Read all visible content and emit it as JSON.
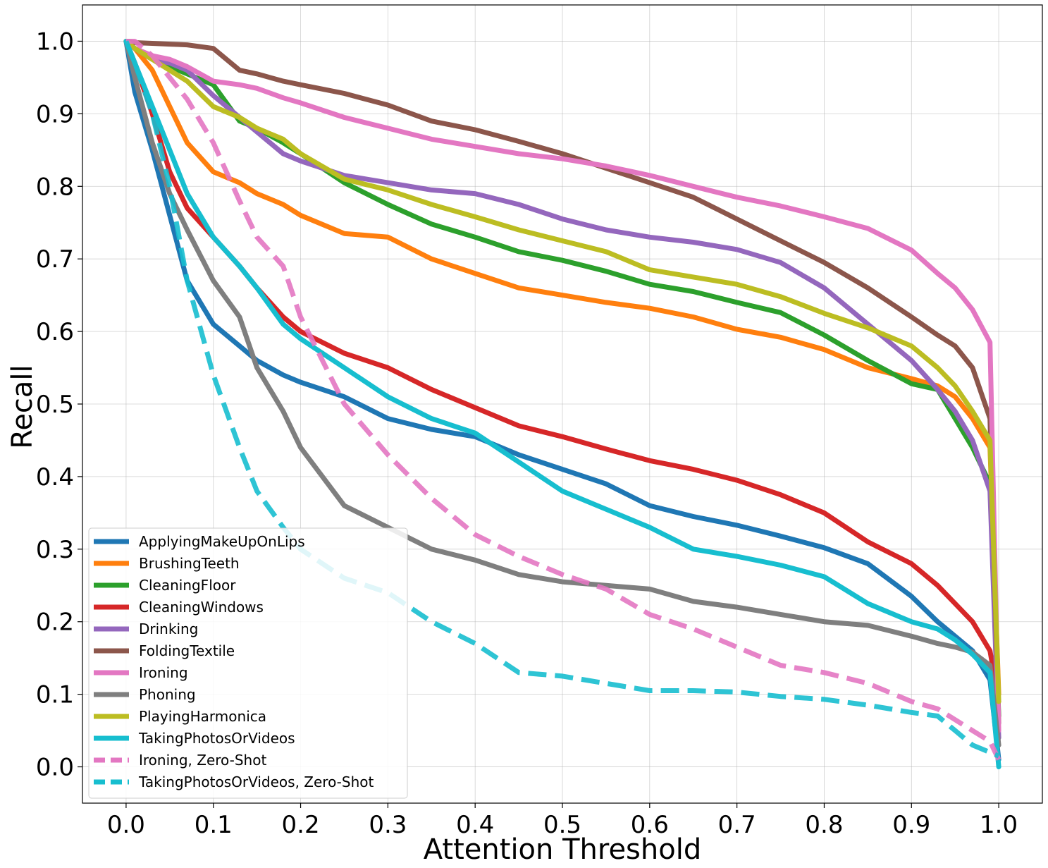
{
  "chart_data": {
    "type": "line",
    "title": "",
    "xlabel": "Attention Threshold",
    "ylabel": "Recall",
    "xlim": [
      -0.05,
      1.05
    ],
    "ylim": [
      -0.05,
      1.05
    ],
    "xticks": [
      "0.0",
      "0.1",
      "0.2",
      "0.3",
      "0.4",
      "0.5",
      "0.6",
      "0.7",
      "0.8",
      "0.9",
      "1.0"
    ],
    "yticks": [
      "0.0",
      "0.1",
      "0.2",
      "0.3",
      "0.4",
      "0.5",
      "0.6",
      "0.7",
      "0.8",
      "0.9",
      "1.0"
    ],
    "grid": true,
    "legend_position": "bottom-left",
    "x": [
      0,
      0.01,
      0.03,
      0.05,
      0.07,
      0.1,
      0.13,
      0.15,
      0.18,
      0.2,
      0.25,
      0.3,
      0.35,
      0.4,
      0.45,
      0.5,
      0.55,
      0.6,
      0.65,
      0.7,
      0.75,
      0.8,
      0.85,
      0.9,
      0.93,
      0.95,
      0.97,
      0.99,
      1.0
    ],
    "series": [
      {
        "name": "ApplyingMakeUpOnLips",
        "color": "#1f77b4",
        "dashed": false,
        "values": [
          1.0,
          0.93,
          0.85,
          0.76,
          0.67,
          0.61,
          0.58,
          0.56,
          0.54,
          0.53,
          0.51,
          0.48,
          0.465,
          0.455,
          0.43,
          0.41,
          0.39,
          0.36,
          0.345,
          0.333,
          0.318,
          0.302,
          0.28,
          0.235,
          0.2,
          0.18,
          0.16,
          0.12,
          0.01
        ]
      },
      {
        "name": "BrushingTeeth",
        "color": "#ff7f0e",
        "dashed": false,
        "values": [
          1.0,
          0.99,
          0.96,
          0.91,
          0.86,
          0.82,
          0.805,
          0.79,
          0.775,
          0.76,
          0.735,
          0.73,
          0.7,
          0.68,
          0.66,
          0.65,
          0.64,
          0.632,
          0.62,
          0.603,
          0.592,
          0.575,
          0.55,
          0.535,
          0.525,
          0.51,
          0.48,
          0.44,
          0.1
        ]
      },
      {
        "name": "CleaningFloor",
        "color": "#2ca02c",
        "dashed": false,
        "values": [
          1.0,
          0.99,
          0.975,
          0.965,
          0.955,
          0.94,
          0.89,
          0.88,
          0.86,
          0.845,
          0.805,
          0.775,
          0.748,
          0.73,
          0.71,
          0.698,
          0.683,
          0.665,
          0.655,
          0.64,
          0.626,
          0.595,
          0.56,
          0.528,
          0.52,
          0.48,
          0.44,
          0.39,
          0.07
        ]
      },
      {
        "name": "CleaningWindows",
        "color": "#d62728",
        "dashed": false,
        "values": [
          1.0,
          0.97,
          0.9,
          0.82,
          0.77,
          0.73,
          0.69,
          0.66,
          0.62,
          0.6,
          0.57,
          0.55,
          0.52,
          0.495,
          0.47,
          0.455,
          0.438,
          0.422,
          0.41,
          0.395,
          0.375,
          0.35,
          0.31,
          0.28,
          0.25,
          0.225,
          0.2,
          0.16,
          0.09
        ]
      },
      {
        "name": "Drinking",
        "color": "#9467bd",
        "dashed": false,
        "values": [
          1.0,
          0.99,
          0.975,
          0.97,
          0.96,
          0.925,
          0.895,
          0.875,
          0.845,
          0.835,
          0.815,
          0.805,
          0.795,
          0.79,
          0.775,
          0.755,
          0.74,
          0.73,
          0.723,
          0.713,
          0.695,
          0.66,
          0.61,
          0.56,
          0.52,
          0.49,
          0.45,
          0.38,
          0.04
        ]
      },
      {
        "name": "FoldingTextile",
        "color": "#8c564b",
        "dashed": false,
        "values": [
          1.0,
          0.998,
          0.997,
          0.996,
          0.995,
          0.99,
          0.96,
          0.955,
          0.945,
          0.94,
          0.928,
          0.912,
          0.89,
          0.878,
          0.862,
          0.845,
          0.825,
          0.805,
          0.785,
          0.755,
          0.725,
          0.695,
          0.66,
          0.62,
          0.595,
          0.58,
          0.55,
          0.48,
          0.06
        ]
      },
      {
        "name": "Ironing",
        "color": "#e377c2",
        "dashed": false,
        "values": [
          1.0,
          0.99,
          0.98,
          0.975,
          0.965,
          0.945,
          0.94,
          0.935,
          0.922,
          0.915,
          0.895,
          0.88,
          0.865,
          0.855,
          0.845,
          0.838,
          0.828,
          0.815,
          0.8,
          0.785,
          0.773,
          0.758,
          0.742,
          0.712,
          0.68,
          0.66,
          0.63,
          0.585,
          0.05
        ]
      },
      {
        "name": "Phoning",
        "color": "#7f7f7f",
        "dashed": false,
        "values": [
          1.0,
          0.95,
          0.86,
          0.79,
          0.74,
          0.67,
          0.62,
          0.55,
          0.49,
          0.44,
          0.36,
          0.33,
          0.3,
          0.285,
          0.265,
          0.255,
          0.25,
          0.245,
          0.228,
          0.22,
          0.21,
          0.2,
          0.195,
          0.18,
          0.17,
          0.165,
          0.158,
          0.14,
          0.03
        ]
      },
      {
        "name": "PlayingHarmonica",
        "color": "#bcbd22",
        "dashed": false,
        "values": [
          1.0,
          0.99,
          0.975,
          0.96,
          0.945,
          0.91,
          0.895,
          0.88,
          0.865,
          0.845,
          0.81,
          0.795,
          0.775,
          0.758,
          0.74,
          0.725,
          0.71,
          0.685,
          0.675,
          0.665,
          0.648,
          0.625,
          0.605,
          0.58,
          0.55,
          0.525,
          0.49,
          0.45,
          0.09
        ]
      },
      {
        "name": "TakingPhotosOrVideos",
        "color": "#17becf",
        "dashed": false,
        "values": [
          1.0,
          0.97,
          0.91,
          0.85,
          0.79,
          0.73,
          0.69,
          0.66,
          0.61,
          0.59,
          0.55,
          0.51,
          0.48,
          0.46,
          0.42,
          0.38,
          0.355,
          0.33,
          0.3,
          0.29,
          0.278,
          0.262,
          0.225,
          0.2,
          0.19,
          0.175,
          0.155,
          0.13,
          0.0
        ]
      },
      {
        "name": "Ironing, Zero-Shot",
        "color": "#e377c2",
        "dashed": true,
        "values": [
          1.0,
          1.0,
          0.98,
          0.95,
          0.92,
          0.86,
          0.78,
          0.73,
          0.69,
          0.62,
          0.5,
          0.43,
          0.37,
          0.32,
          0.29,
          0.265,
          0.245,
          0.21,
          0.19,
          0.165,
          0.14,
          0.13,
          0.115,
          0.09,
          0.08,
          0.065,
          0.05,
          0.035,
          0.01
        ]
      },
      {
        "name": "TakingPhotosOrVideos, Zero-Shot",
        "color": "#17becf",
        "dashed": true,
        "values": [
          1.0,
          0.97,
          0.9,
          0.8,
          0.67,
          0.54,
          0.44,
          0.38,
          0.33,
          0.3,
          0.26,
          0.24,
          0.2,
          0.17,
          0.13,
          0.125,
          0.115,
          0.105,
          0.105,
          0.103,
          0.097,
          0.093,
          0.085,
          0.075,
          0.07,
          0.05,
          0.03,
          0.02,
          0.015
        ]
      }
    ]
  }
}
